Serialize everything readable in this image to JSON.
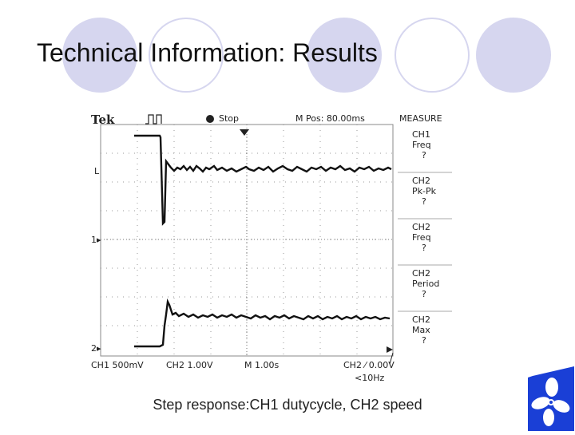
{
  "slide": {
    "title": "Technical Information: Results",
    "caption": "Step response:CH1 dutycycle, CH2 speed"
  },
  "colors": {
    "accent_circle": "#d6d6ef",
    "logo_blue": "#1a3fd6"
  },
  "scope": {
    "brand": "Tek",
    "trigger_symbol": "⎍⎍..",
    "run_state": "Stop",
    "position": "M Pos: 80.00ms",
    "menu_title": "MEASURE",
    "measurements": [
      {
        "channel": "CH1",
        "type": "Freq",
        "value": "?"
      },
      {
        "channel": "CH2",
        "type": "Pk-Pk",
        "value": "?"
      },
      {
        "channel": "CH2",
        "type": "Freq",
        "value": "?"
      },
      {
        "channel": "CH2",
        "type": "Period",
        "value": "?"
      },
      {
        "channel": "CH2",
        "type": "Max",
        "value": "?"
      }
    ],
    "marker_ch1": "1▸",
    "marker_ch2": "2▸",
    "marker_l": "L",
    "bottom": {
      "ch1": "CH1  500mV",
      "ch2": "CH2  1.00V",
      "timebase": "M 1.00s",
      "trigger": "CH2  ⁄  0.00V",
      "freq": "<10Hz"
    }
  },
  "logo": {
    "icon": "fan-icon"
  }
}
